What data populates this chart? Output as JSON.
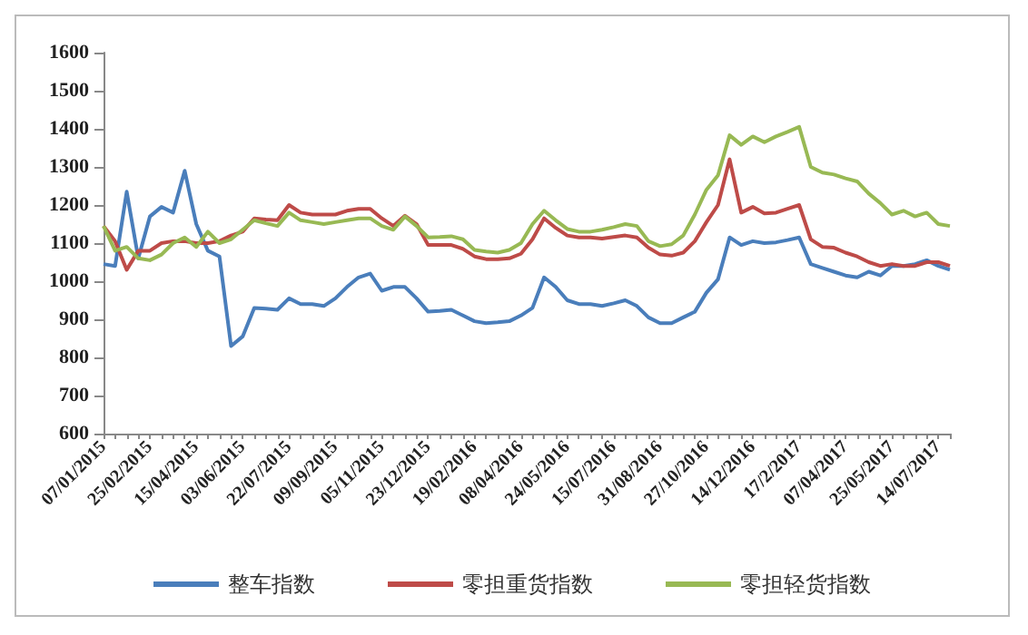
{
  "chart_data": {
    "type": "line",
    "categories": [
      "07/01/2015",
      null,
      null,
      null,
      "25/02/2015",
      null,
      null,
      null,
      "15/04/2015",
      null,
      null,
      null,
      "03/06/2015",
      null,
      null,
      null,
      "22/07/2015",
      null,
      null,
      null,
      "09/09/2015",
      null,
      null,
      null,
      "05/11/2015",
      null,
      null,
      null,
      "23/12/2015",
      null,
      null,
      null,
      "19/02/2016",
      null,
      null,
      null,
      "08/04/2016",
      null,
      null,
      null,
      "24/05/2016",
      null,
      null,
      null,
      "15/07/2016",
      null,
      null,
      null,
      "31/08/2016",
      null,
      null,
      null,
      "27/10/2016",
      null,
      null,
      null,
      "14/12/2016",
      null,
      null,
      null,
      "17/2/2017",
      null,
      null,
      null,
      "07/04/2017",
      null,
      null,
      null,
      "25/05/2017",
      null,
      null,
      null,
      "14/07/2017",
      null
    ],
    "series": [
      {
        "name": "整车指数",
        "color": "#4a7ebb",
        "values": [
          1045,
          1040,
          1235,
          1060,
          1170,
          1195,
          1180,
          1290,
          1150,
          1080,
          1065,
          830,
          855,
          930,
          928,
          925,
          955,
          940,
          940,
          935,
          955,
          985,
          1010,
          1020,
          975,
          985,
          985,
          955,
          920,
          922,
          925,
          910,
          895,
          890,
          892,
          895,
          910,
          930,
          1010,
          985,
          950,
          940,
          940,
          935,
          942,
          950,
          935,
          905,
          890,
          890,
          905,
          920,
          970,
          1005,
          1115,
          1095,
          1105,
          1100,
          1102,
          1108,
          1115,
          1045,
          1035,
          1025,
          1015,
          1010,
          1025,
          1015,
          1040,
          1040,
          1045,
          1055,
          1040,
          1030
        ]
      },
      {
        "name": "零担重货指数",
        "color": "#be4b48",
        "values": [
          1145,
          1105,
          1030,
          1080,
          1080,
          1100,
          1105,
          1105,
          1100,
          1100,
          1105,
          1120,
          1130,
          1165,
          1162,
          1160,
          1200,
          1180,
          1175,
          1175,
          1175,
          1185,
          1190,
          1190,
          1165,
          1145,
          1172,
          1150,
          1095,
          1095,
          1095,
          1085,
          1065,
          1058,
          1058,
          1060,
          1072,
          1110,
          1165,
          1140,
          1120,
          1115,
          1115,
          1112,
          1116,
          1120,
          1115,
          1088,
          1070,
          1067,
          1075,
          1105,
          1155,
          1200,
          1320,
          1180,
          1195,
          1178,
          1180,
          1190,
          1200,
          1110,
          1090,
          1088,
          1075,
          1065,
          1050,
          1040,
          1045,
          1040,
          1040,
          1050,
          1050,
          1040
        ]
      },
      {
        "name": "零担轻货指数",
        "color": "#98b954",
        "values": [
          1145,
          1080,
          1090,
          1060,
          1055,
          1070,
          1100,
          1115,
          1090,
          1130,
          1100,
          1110,
          1135,
          1160,
          1152,
          1145,
          1180,
          1160,
          1155,
          1150,
          1155,
          1160,
          1165,
          1165,
          1145,
          1135,
          1170,
          1145,
          1115,
          1116,
          1118,
          1110,
          1082,
          1078,
          1075,
          1082,
          1100,
          1150,
          1185,
          1160,
          1137,
          1130,
          1130,
          1135,
          1142,
          1150,
          1145,
          1105,
          1092,
          1097,
          1120,
          1175,
          1240,
          1278,
          1383,
          1358,
          1380,
          1365,
          1380,
          1392,
          1405,
          1300,
          1285,
          1280,
          1270,
          1262,
          1230,
          1205,
          1175,
          1185,
          1170,
          1180,
          1150,
          1145
        ]
      }
    ],
    "ylim": [
      600,
      1600
    ],
    "yticks": [
      600,
      700,
      800,
      900,
      1000,
      1100,
      1200,
      1300,
      1400,
      1500,
      1600
    ],
    "grid": false,
    "legend": "bottom",
    "marker": "none",
    "line_style": "solid"
  }
}
